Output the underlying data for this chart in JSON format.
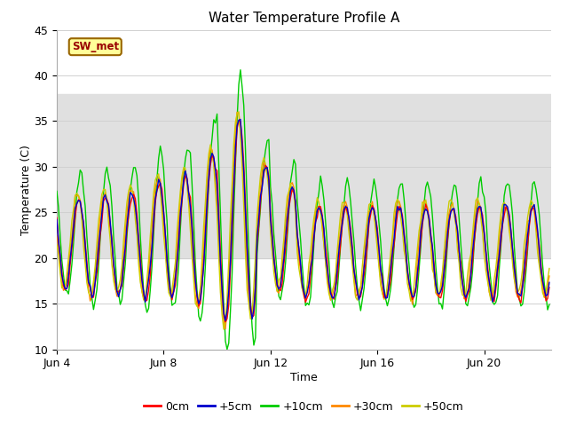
{
  "title": "Water Temperature Profile A",
  "xlabel": "Time",
  "ylabel": "Temperature (C)",
  "ylim": [
    10,
    45
  ],
  "yticks": [
    10,
    15,
    20,
    25,
    30,
    35,
    40,
    45
  ],
  "x_tick_days": [
    4,
    8,
    12,
    16,
    20
  ],
  "x_tick_labels": [
    "Jun 4",
    "Jun 8",
    "Jun 12",
    "Jun 16",
    "Jun 20"
  ],
  "series_colors": [
    "#ff0000",
    "#0000cc",
    "#00cc00",
    "#ff8800",
    "#cccc00"
  ],
  "series_labels": [
    "0cm",
    "+5cm",
    "+10cm",
    "+30cm",
    "+50cm"
  ],
  "legend_label": "SW_met",
  "legend_box_color": "#ffff99",
  "legend_box_border": "#996600",
  "legend_text_color": "#990000",
  "hspan_low": 20,
  "hspan_high": 38,
  "hspan_color": "#e0e0e0",
  "background_color": "#ffffff"
}
